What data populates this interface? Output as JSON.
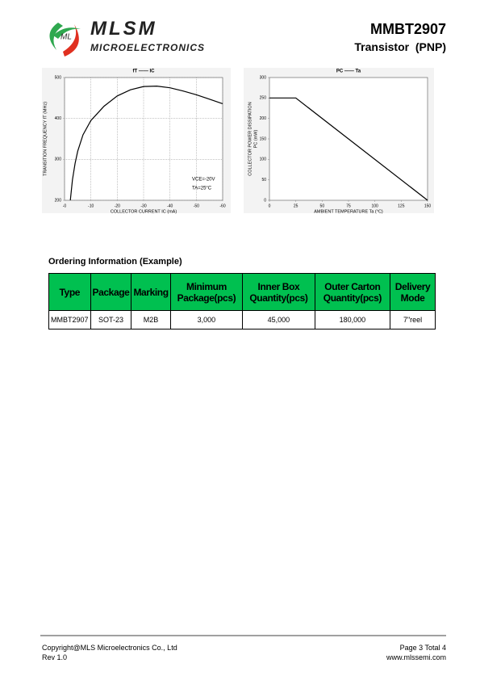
{
  "header": {
    "brand": "MLSM",
    "brand_sub": "MICROELECTRONICS",
    "logo_text": "ML",
    "part": "MMBT2907",
    "subtitle": "Transistor  (PNP)"
  },
  "chart_data": [
    {
      "type": "line",
      "title": "fT  ——  IC",
      "xlabel": "COLLECTOR CURRENT  IC   (mA)",
      "ylabel": [
        "TRANSITION FREQUENCY  fT   (MHz)"
      ],
      "annotations": [
        "VCE=-20V",
        "TA=25°C"
      ],
      "color": "#000000",
      "grid": true,
      "xlim": [
        0,
        -60
      ],
      "ylim": [
        200,
        500
      ],
      "xticks": [
        {
          "value": 0,
          "label": "-0"
        },
        -10,
        -20,
        -30,
        -40,
        -50,
        -60
      ],
      "yticks": [
        200,
        300,
        400,
        500
      ],
      "x": [
        -2.2,
        -3,
        -4,
        -5,
        -7,
        -10,
        -15,
        -20,
        -25,
        -30,
        -35,
        -40,
        -45,
        -50,
        -55,
        -60
      ],
      "values": [
        200,
        250,
        290,
        320,
        360,
        395,
        430,
        455,
        470,
        478,
        479,
        475,
        467,
        458,
        447,
        436
      ]
    },
    {
      "type": "line",
      "title": "PC  ——  Ta",
      "xlabel": "AMBIENT TEMPERATURE   Ta   (°C)",
      "ylabel": [
        "COLLECTOR POWER DISSIPATION",
        "PC   (mW)"
      ],
      "annotations": [],
      "color": "#000000",
      "grid": false,
      "xlim": [
        0,
        150
      ],
      "ylim": [
        0,
        300
      ],
      "xticks": [
        0,
        25,
        50,
        75,
        100,
        125,
        150
      ],
      "yticks": [
        0,
        50,
        100,
        150,
        200,
        250,
        300
      ],
      "x": [
        0,
        25,
        150
      ],
      "values": [
        250,
        250,
        0
      ]
    }
  ],
  "ordering": {
    "title": "Ordering Information (Example)",
    "table": {
      "header": [
        "Type",
        "Package",
        "Marking",
        "Minimum Package(pcs)",
        "Inner Box Quantity(pcs)",
        "Outer Carton Quantity(pcs)",
        "Delivery Mode"
      ],
      "rows": [
        [
          "MMBT2907",
          "SOT-23",
          "M2B",
          "3,000",
          "45,000",
          "180,000",
          "7\"reel"
        ]
      ]
    }
  },
  "footer": {
    "copyright": "Copyright@MLS Microelectronics Co., Ltd",
    "rev": "Rev 1.0",
    "page": "Page 3 Total 4",
    "url": "www.mlssemi.com"
  }
}
